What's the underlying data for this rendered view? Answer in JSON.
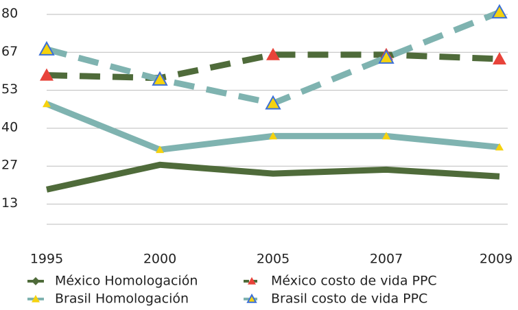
{
  "chart_data": {
    "type": "line",
    "categories": [
      "1995",
      "2000",
      "2005",
      "2007",
      "2009"
    ],
    "series": [
      {
        "name": "México Homologación",
        "color": "#4f6b3a",
        "dashed": false,
        "marker": "diamond",
        "marker_color": "#4f6b3a",
        "values": [
          18.2,
          26.9,
          23.8,
          25.2,
          22.8
        ]
      },
      {
        "name": "México costo de vida PPC",
        "color": "#4f6b3a",
        "dashed": true,
        "marker": "triangle",
        "marker_color": "#e8433a",
        "values": [
          58.4,
          57.4,
          65.6,
          65.6,
          64.1
        ]
      },
      {
        "name": "Brasil Homologación",
        "color": "#7fb3b0",
        "dashed": false,
        "marker": "triangle",
        "marker_color": "#f5d20f",
        "values": [
          48.3,
          32.2,
          37,
          37,
          33.1
        ]
      },
      {
        "name": "Brasil costo de vida PPC",
        "color": "#7fb3b0",
        "dashed": true,
        "marker": "triangle-outline",
        "marker_color": "#f5d20f",
        "values": [
          67.5,
          56.9,
          48.5,
          64.6,
          80.5
        ]
      }
    ],
    "ylim": [
      6,
      80
    ],
    "yticks": [
      {
        "value": 13.33,
        "label": "13"
      },
      {
        "value": 26.67,
        "label": "27"
      },
      {
        "value": 40,
        "label": "40"
      },
      {
        "value": 53.33,
        "label": "53"
      },
      {
        "value": 66.67,
        "label": "67"
      },
      {
        "value": 80,
        "label": "80"
      }
    ],
    "grid": true
  }
}
